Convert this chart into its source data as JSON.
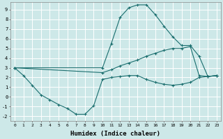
{
  "title": "",
  "xlabel": "Humidex (Indice chaleur)",
  "ylabel": "",
  "bg_color": "#cde8e8",
  "line_color": "#1a6e6e",
  "grid_color": "#ffffff",
  "xlim": [
    -0.5,
    23.5
  ],
  "ylim": [
    -2.5,
    9.8
  ],
  "xticks": [
    0,
    1,
    2,
    3,
    4,
    5,
    6,
    7,
    8,
    9,
    10,
    11,
    12,
    13,
    14,
    15,
    16,
    17,
    18,
    19,
    20,
    21,
    22,
    23
  ],
  "yticks": [
    -2,
    -1,
    0,
    1,
    2,
    3,
    4,
    5,
    6,
    7,
    8,
    9
  ],
  "series": [
    {
      "x": [
        0,
        1,
        2,
        3,
        4,
        5,
        6,
        7,
        8,
        9,
        10,
        11,
        12,
        13,
        14,
        15,
        16,
        17,
        18,
        19,
        20,
        21,
        22,
        23
      ],
      "y": [
        3,
        2.2,
        1.2,
        0.2,
        -0.3,
        -0.8,
        -1.2,
        -1.8,
        -1.8,
        -0.9,
        1.8,
        2.0,
        2.1,
        2.2,
        2.2,
        1.8,
        1.5,
        1.3,
        1.2,
        1.3,
        1.5,
        2.0,
        2.1,
        2.2
      ]
    },
    {
      "x": [
        0,
        10,
        11,
        12,
        13,
        14,
        15,
        16,
        17,
        18,
        19,
        20,
        21,
        22,
        23
      ],
      "y": [
        3,
        2.5,
        2.8,
        3.2,
        3.5,
        3.8,
        4.2,
        4.5,
        4.8,
        5.0,
        5.0,
        5.2,
        2.2,
        2.1,
        2.2
      ]
    },
    {
      "x": [
        0,
        10,
        11,
        12,
        13,
        14,
        15,
        16,
        17,
        18,
        19,
        20,
        21,
        22,
        23
      ],
      "y": [
        3,
        3.0,
        5.5,
        8.2,
        9.2,
        9.5,
        9.5,
        8.5,
        7.3,
        6.2,
        5.3,
        5.3,
        4.2,
        2.1,
        2.2
      ]
    }
  ]
}
